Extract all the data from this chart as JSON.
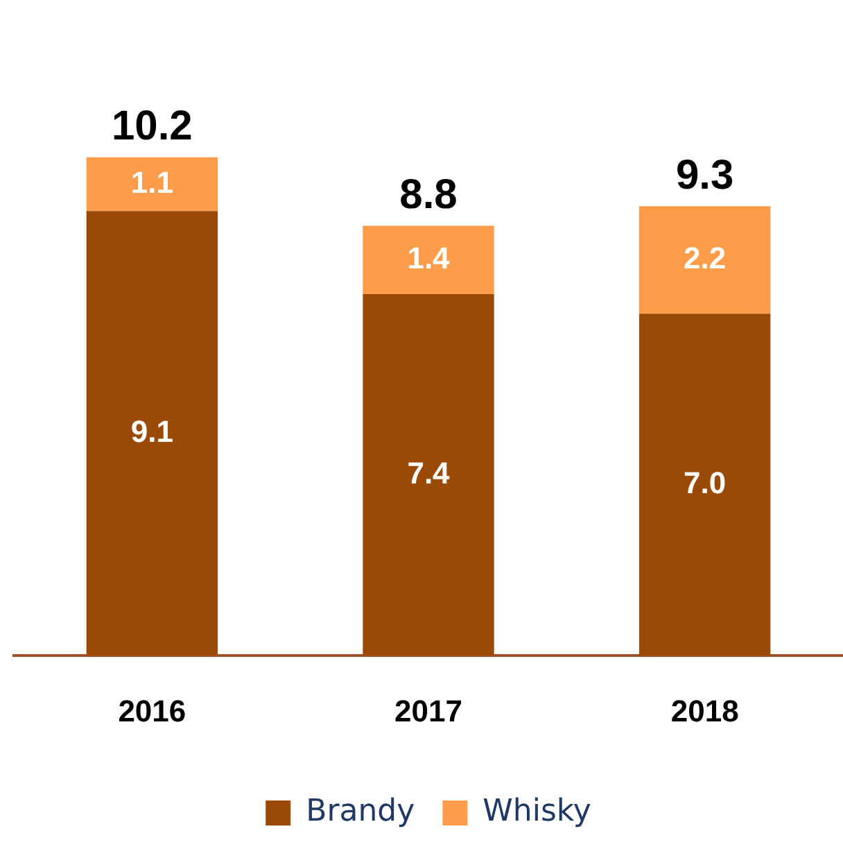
{
  "chart_data": {
    "type": "bar",
    "stacked": true,
    "categories": [
      "2016",
      "2017",
      "2018"
    ],
    "series": [
      {
        "name": "Brandy",
        "color": "#9a4a06",
        "values": [
          9.1,
          7.4,
          7.0
        ],
        "value_labels": [
          "9.1",
          "7.4",
          "7.0"
        ]
      },
      {
        "name": "Whisky",
        "color": "#ff9c4a",
        "values": [
          1.1,
          1.4,
          2.2
        ],
        "value_labels": [
          "1.1",
          "1.4",
          "2.2"
        ]
      }
    ],
    "totals": [
      "10.2",
      "8.8",
      "9.3"
    ],
    "legend": "bottom"
  }
}
